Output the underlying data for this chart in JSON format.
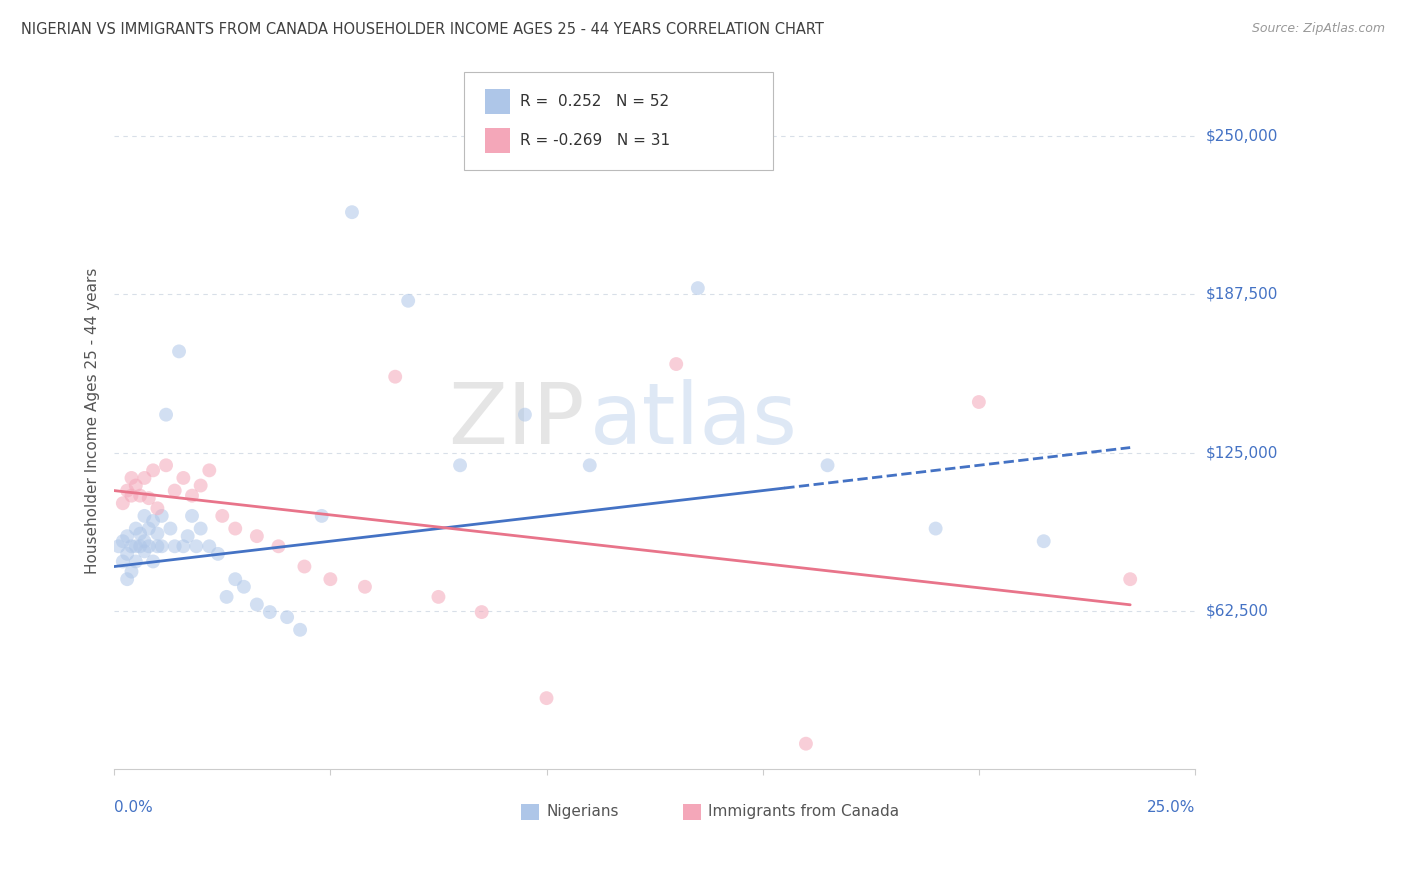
{
  "title": "NIGERIAN VS IMMIGRANTS FROM CANADA HOUSEHOLDER INCOME AGES 25 - 44 YEARS CORRELATION CHART",
  "source": "Source: ZipAtlas.com",
  "ylabel": "Householder Income Ages 25 - 44 years",
  "xlim": [
    0.0,
    0.25
  ],
  "ylim": [
    0.0,
    275000
  ],
  "ytick_positions": [
    62500,
    125000,
    187500,
    250000
  ],
  "ytick_labels": [
    "$62,500",
    "$125,000",
    "$187,500",
    "$250,000"
  ],
  "watermark": "ZIPatlas",
  "blue_color": "#aec6e8",
  "pink_color": "#f4a7b9",
  "blue_line_color": "#4472c4",
  "pink_line_color": "#e8748a",
  "grid_color": "#d8dfe8",
  "title_color": "#404040",
  "source_color": "#999999",
  "tick_label_color": "#4472c4",
  "background_color": "#ffffff",
  "R_nigerian": 0.252,
  "R_canada": -0.269,
  "N_nigerian": 52,
  "N_canada": 31,
  "dot_size": 100,
  "dot_alpha": 0.55,
  "line_width": 2.0,
  "nig_line_start_x": 0.0,
  "nig_line_end_solid": 0.155,
  "nig_line_end_dashed": 0.235,
  "can_line_start_x": 0.0,
  "can_line_end_x": 0.235,
  "nig_line_y_at_0": 80000,
  "nig_line_y_at_025": 130000,
  "can_line_y_at_0": 110000,
  "can_line_y_at_025": 62000,
  "nigerians_x": [
    0.001,
    0.002,
    0.002,
    0.003,
    0.003,
    0.003,
    0.004,
    0.004,
    0.005,
    0.005,
    0.005,
    0.006,
    0.006,
    0.007,
    0.007,
    0.007,
    0.008,
    0.008,
    0.009,
    0.009,
    0.01,
    0.01,
    0.011,
    0.011,
    0.012,
    0.013,
    0.014,
    0.015,
    0.016,
    0.017,
    0.018,
    0.019,
    0.02,
    0.022,
    0.024,
    0.026,
    0.028,
    0.03,
    0.033,
    0.036,
    0.04,
    0.043,
    0.048,
    0.055,
    0.068,
    0.08,
    0.095,
    0.11,
    0.135,
    0.165,
    0.19,
    0.215
  ],
  "nigerians_y": [
    88000,
    90000,
    82000,
    92000,
    85000,
    75000,
    88000,
    78000,
    82000,
    88000,
    95000,
    88000,
    93000,
    86000,
    100000,
    90000,
    88000,
    95000,
    82000,
    98000,
    88000,
    93000,
    100000,
    88000,
    140000,
    95000,
    88000,
    165000,
    88000,
    92000,
    100000,
    88000,
    95000,
    88000,
    85000,
    68000,
    75000,
    72000,
    65000,
    62000,
    60000,
    55000,
    100000,
    220000,
    185000,
    120000,
    140000,
    120000,
    190000,
    120000,
    95000,
    90000
  ],
  "canada_x": [
    0.002,
    0.003,
    0.004,
    0.004,
    0.005,
    0.006,
    0.007,
    0.008,
    0.009,
    0.01,
    0.012,
    0.014,
    0.016,
    0.018,
    0.02,
    0.022,
    0.025,
    0.028,
    0.033,
    0.038,
    0.044,
    0.05,
    0.058,
    0.065,
    0.075,
    0.085,
    0.1,
    0.13,
    0.16,
    0.2,
    0.235
  ],
  "canada_y": [
    105000,
    110000,
    108000,
    115000,
    112000,
    108000,
    115000,
    107000,
    118000,
    103000,
    120000,
    110000,
    115000,
    108000,
    112000,
    118000,
    100000,
    95000,
    92000,
    88000,
    80000,
    75000,
    72000,
    155000,
    68000,
    62000,
    28000,
    160000,
    10000,
    145000,
    75000
  ]
}
